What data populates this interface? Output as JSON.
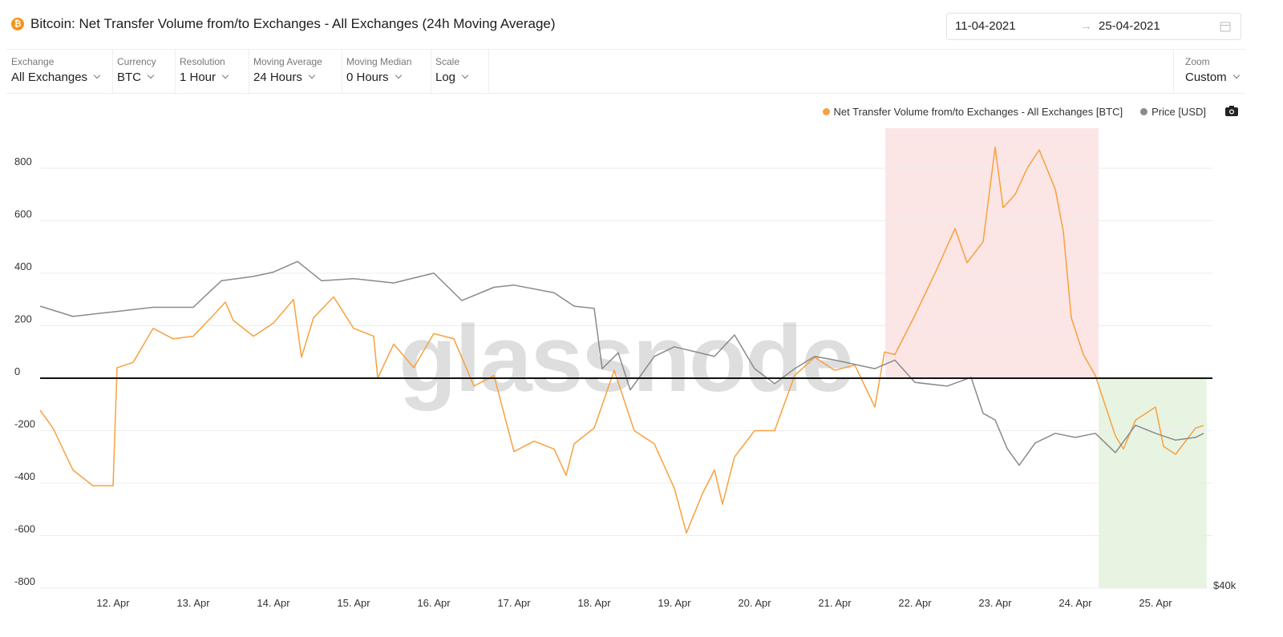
{
  "header": {
    "title": "Bitcoin: Net Transfer Volume from/to Exchanges - All Exchanges (24h Moving Average)",
    "date_from": "11-04-2021",
    "date_to": "25-04-2021"
  },
  "controls": [
    {
      "label": "Exchange",
      "value": "All Exchanges"
    },
    {
      "label": "Currency",
      "value": "BTC"
    },
    {
      "label": "Resolution",
      "value": "1 Hour"
    },
    {
      "label": "Moving Average",
      "value": "24 Hours"
    },
    {
      "label": "Moving Median",
      "value": "0 Hours"
    },
    {
      "label": "Scale",
      "value": "Log"
    }
  ],
  "zoom": {
    "label": "Zoom",
    "value": "Custom"
  },
  "watermark": "glassnode",
  "chart_data": {
    "type": "line",
    "series": [
      {
        "name": "Net Transfer Volume from/to Exchanges - All Exchanges [BTC]",
        "color": "#f7a13e",
        "x": [
          11.09,
          11.25,
          11.5,
          11.75,
          12.0,
          12.05,
          12.25,
          12.5,
          12.75,
          13.0,
          13.25,
          13.4,
          13.5,
          13.75,
          14.0,
          14.25,
          14.35,
          14.5,
          14.75,
          15.0,
          15.25,
          15.3,
          15.5,
          15.75,
          16.0,
          16.25,
          16.5,
          16.75,
          17.0,
          17.25,
          17.5,
          17.65,
          17.75,
          18.0,
          18.25,
          18.5,
          18.75,
          19.0,
          19.15,
          19.35,
          19.5,
          19.6,
          19.75,
          20.0,
          20.25,
          20.5,
          20.75,
          21.0,
          21.25,
          21.5,
          21.62,
          21.75,
          22.0,
          22.25,
          22.5,
          22.65,
          22.85,
          23.0,
          23.1,
          23.25,
          23.4,
          23.55,
          23.75,
          23.85,
          23.95,
          24.1,
          24.25,
          24.5,
          24.6,
          24.75,
          25.0,
          25.1,
          25.25,
          25.5,
          25.6
        ],
        "values": [
          -122,
          -190,
          -350,
          -410,
          -410,
          40,
          60,
          190,
          150,
          160,
          240,
          290,
          220,
          160,
          210,
          300,
          80,
          230,
          310,
          190,
          160,
          0,
          130,
          40,
          170,
          150,
          -30,
          10,
          -280,
          -240,
          -270,
          -370,
          -250,
          -190,
          30,
          -200,
          -250,
          -420,
          -590,
          -440,
          -350,
          -480,
          -300,
          -200,
          -200,
          10,
          80,
          30,
          50,
          -110,
          100,
          90,
          240,
          400,
          570,
          440,
          520,
          880,
          650,
          700,
          800,
          870,
          720,
          560,
          230,
          90,
          10,
          -220,
          -270,
          -160,
          -110,
          -260,
          -290,
          -190,
          -180
        ]
      },
      {
        "name": "Price [USD]",
        "color": "#8a8a8a",
        "axis": "y2",
        "x": [
          11.09,
          11.5,
          12.0,
          12.5,
          13.0,
          13.35,
          13.75,
          14.0,
          14.3,
          14.6,
          15.0,
          15.5,
          16.0,
          16.35,
          16.75,
          17.0,
          17.5,
          17.75,
          18.0,
          18.1,
          18.3,
          18.45,
          18.75,
          19.0,
          19.5,
          19.75,
          20.0,
          20.25,
          20.5,
          20.75,
          21.0,
          21.5,
          21.75,
          22.0,
          22.4,
          22.7,
          22.85,
          23.0,
          23.15,
          23.3,
          23.5,
          23.75,
          24.0,
          24.25,
          24.5,
          24.75,
          25.0,
          25.25,
          25.5,
          25.6
        ],
        "values": [
          60500,
          59600,
          60000,
          60400,
          60400,
          62800,
          63200,
          63600,
          64600,
          62800,
          63000,
          62600,
          63500,
          61000,
          62200,
          62400,
          61700,
          60500,
          60300,
          55200,
          56500,
          53500,
          56200,
          57000,
          56200,
          58000,
          55200,
          54000,
          55200,
          56200,
          55900,
          55200,
          55900,
          54100,
          53800,
          54500,
          51700,
          51200,
          49100,
          47900,
          49500,
          50200,
          49900,
          50200,
          48800,
          50800,
          50200,
          49700,
          49900,
          50200
        ]
      }
    ],
    "xlim": [
      11.09,
      25.71
    ],
    "xticks": [
      {
        "value": 12,
        "label": "12. Apr"
      },
      {
        "value": 13,
        "label": "13. Apr"
      },
      {
        "value": 14,
        "label": "14. Apr"
      },
      {
        "value": 15,
        "label": "15. Apr"
      },
      {
        "value": 16,
        "label": "16. Apr"
      },
      {
        "value": 17,
        "label": "17. Apr"
      },
      {
        "value": 18,
        "label": "18. Apr"
      },
      {
        "value": 19,
        "label": "19. Apr"
      },
      {
        "value": 20,
        "label": "20. Apr"
      },
      {
        "value": 21,
        "label": "21. Apr"
      },
      {
        "value": 22,
        "label": "22. Apr"
      },
      {
        "value": 23,
        "label": "23. Apr"
      },
      {
        "value": 24,
        "label": "24. Apr"
      },
      {
        "value": 25,
        "label": "25. Apr"
      }
    ],
    "ylim": [
      -800,
      1000
    ],
    "yticks": [
      -800,
      -600,
      -400,
      -200,
      0,
      200,
      400,
      600,
      800
    ],
    "y2lim": [
      40000,
      80000
    ],
    "y2ticks": [
      {
        "value": 40000,
        "label": "$40k"
      }
    ],
    "y2_log": true,
    "grid": true,
    "zero_line": true,
    "legend": "top-right",
    "bands": [
      {
        "x": [
          21.63,
          24.29
        ],
        "y": [
          0,
          953
        ],
        "color": "#fbe5e5"
      },
      {
        "x": [
          24.29,
          25.64
        ],
        "y": [
          -800,
          0
        ],
        "color": "#e7f4e2"
      }
    ]
  }
}
